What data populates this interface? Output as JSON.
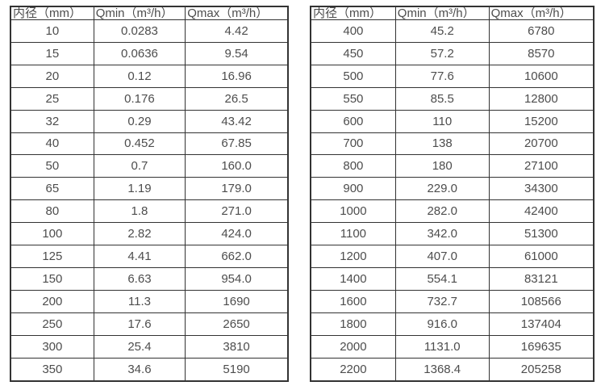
{
  "style": {
    "text_color": "#4d4d4d",
    "border_color": "#333333",
    "background_color": "#ffffff"
  },
  "tables": [
    {
      "name": "flow-table-small-diameters",
      "headers": [
        "内径（mm）",
        "Qmin（m³/h）",
        "Qmax（m³/h）"
      ],
      "rows": [
        [
          "10",
          "0.0283",
          "4.42"
        ],
        [
          "15",
          "0.0636",
          "9.54"
        ],
        [
          "20",
          "0.12",
          "16.96"
        ],
        [
          "25",
          "0.176",
          "26.5"
        ],
        [
          "32",
          "0.29",
          "43.42"
        ],
        [
          "40",
          "0.452",
          "67.85"
        ],
        [
          "50",
          "0.7",
          "160.0"
        ],
        [
          "65",
          "1.19",
          "179.0"
        ],
        [
          "80",
          "1.8",
          "271.0"
        ],
        [
          "100",
          "2.82",
          "424.0"
        ],
        [
          "125",
          "4.41",
          "662.0"
        ],
        [
          "150",
          "6.63",
          "954.0"
        ],
        [
          "200",
          "11.3",
          "1690"
        ],
        [
          "250",
          "17.6",
          "2650"
        ],
        [
          "300",
          "25.4",
          "3810"
        ],
        [
          "350",
          "34.6",
          "5190"
        ]
      ]
    },
    {
      "name": "flow-table-large-diameters",
      "headers": [
        "内径（mm）",
        "Qmin（m³/h）",
        "Qmax（m³/h）"
      ],
      "rows": [
        [
          "400",
          "45.2",
          "6780"
        ],
        [
          "450",
          "57.2",
          "8570"
        ],
        [
          "500",
          "77.6",
          "10600"
        ],
        [
          "550",
          "85.5",
          "12800"
        ],
        [
          "600",
          "110",
          "15200"
        ],
        [
          "700",
          "138",
          "20700"
        ],
        [
          "800",
          "180",
          "27100"
        ],
        [
          "900",
          "229.0",
          "34300"
        ],
        [
          "1000",
          "282.0",
          "42400"
        ],
        [
          "1100",
          "342.0",
          "51300"
        ],
        [
          "1200",
          "407.0",
          "61000"
        ],
        [
          "1400",
          "554.1",
          "83121"
        ],
        [
          "1600",
          "732.7",
          "108566"
        ],
        [
          "1800",
          "916.0",
          "137404"
        ],
        [
          "2000",
          "1131.0",
          "169635"
        ],
        [
          "2200",
          "1368.4",
          "205258"
        ]
      ]
    }
  ]
}
